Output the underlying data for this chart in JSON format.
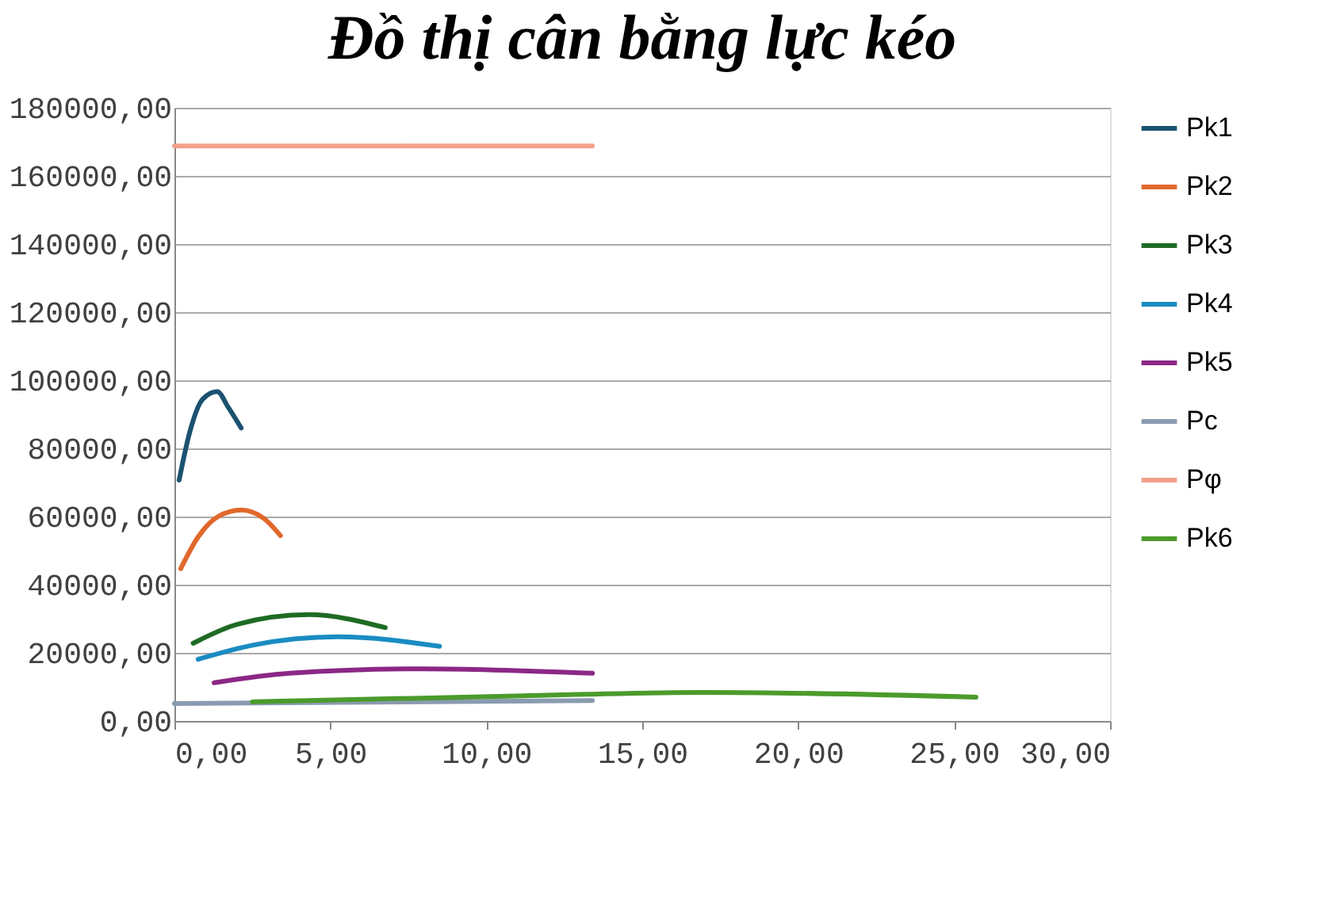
{
  "chart_data": {
    "type": "line",
    "title": "Đồ thị cân bằng lực kéo",
    "xlim": [
      0,
      30
    ],
    "xticks": [
      {
        "value": 0,
        "label": "0,00"
      },
      {
        "value": 5,
        "label": "5,00"
      },
      {
        "value": 10,
        "label": "10,00"
      },
      {
        "value": 15,
        "label": "15,00"
      },
      {
        "value": 20,
        "label": "20,00"
      },
      {
        "value": 25,
        "label": "25,00"
      },
      {
        "value": 30,
        "label": "30,00"
      }
    ],
    "ylim": [
      0,
      180000
    ],
    "yticks": [
      {
        "value": 0,
        "label": "0,00"
      },
      {
        "value": 20000,
        "label": "20000,00"
      },
      {
        "value": 40000,
        "label": "40000,00"
      },
      {
        "value": 60000,
        "label": "60000,00"
      },
      {
        "value": 80000,
        "label": "80000,00"
      },
      {
        "value": 100000,
        "label": "100000,00"
      },
      {
        "value": 120000,
        "label": "120000,00"
      },
      {
        "value": 140000,
        "label": "140000,00"
      },
      {
        "value": 160000,
        "label": "160000,00"
      },
      {
        "value": 180000,
        "label": "180000,00"
      }
    ],
    "grid": "y",
    "legend": "right",
    "marker": "none",
    "line_style": "solid",
    "series": [
      {
        "name": "Pk1",
        "color": "#1b5270",
        "x": [
          0.15,
          0.5,
          0.9,
          1.37,
          1.73,
          2.14
        ],
        "values": [
          70700,
          85100,
          94400,
          96700,
          92000,
          86000
        ]
      },
      {
        "name": "Pk2",
        "color": "#e0682c",
        "x": [
          0.2,
          0.76,
          1.4,
          2.14,
          2.86,
          3.4
        ],
        "values": [
          44700,
          54000,
          60000,
          61900,
          59500,
          54400
        ]
      },
      {
        "name": "Pk3",
        "color": "#1e6b24",
        "x": [
          0.6,
          2.03,
          4.3,
          6.76
        ],
        "values": [
          22800,
          28400,
          31200,
          27400
        ]
      },
      {
        "name": "Pk4",
        "color": "#1a8cc2",
        "x": [
          0.76,
          2.54,
          5.24,
          8.5
        ],
        "values": [
          18100,
          22300,
          24700,
          21900
        ]
      },
      {
        "name": "Pk5",
        "color": "#8b2886",
        "x": [
          1.27,
          3.7,
          8.0,
          13.4
        ],
        "values": [
          11200,
          14000,
          15300,
          14000
        ]
      },
      {
        "name": "Pc",
        "color": "#8a9bb0",
        "x": [
          0,
          13.4
        ],
        "values": [
          5100,
          6000
        ]
      },
      {
        "name": "Pφ",
        "color": "#f4a08a",
        "x": [
          0,
          13.4
        ],
        "values": [
          168800,
          168800
        ]
      },
      {
        "name": "Pk6",
        "color": "#4b9b2c",
        "x": [
          2.5,
          11.2,
          17,
          25.7
        ],
        "values": [
          5600,
          7400,
          8400,
          7000
        ]
      }
    ]
  }
}
